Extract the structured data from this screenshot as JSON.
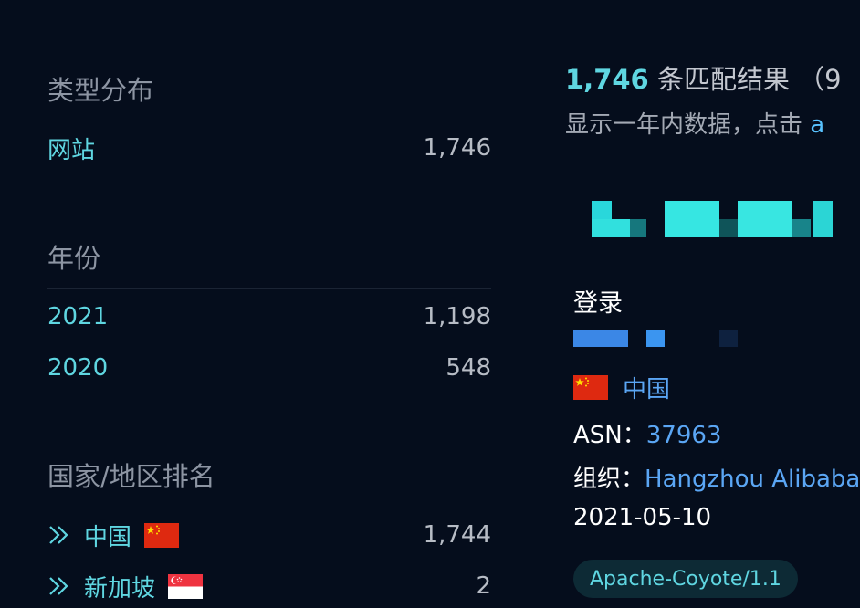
{
  "filters": {
    "type": {
      "title": "类型分布",
      "items": [
        {
          "label": "网站",
          "count": "1,746"
        }
      ]
    },
    "year": {
      "title": "年份",
      "items": [
        {
          "label": "2021",
          "count": "1,198"
        },
        {
          "label": "2020",
          "count": "548"
        }
      ]
    },
    "country": {
      "title": "国家/地区排名",
      "items": [
        {
          "label": "中国",
          "count": "1,744",
          "flag": "cn-flag-icon"
        },
        {
          "label": "新加坡",
          "count": "2",
          "flag": "sg-flag-icon"
        }
      ]
    }
  },
  "results": {
    "count": "1,746",
    "count_suffix": "条匹配结果  （9",
    "note": "显示一年内数据，点击 ",
    "note_link": "a"
  },
  "card": {
    "title": "登录",
    "country": "中国",
    "asn_label": "ASN：",
    "asn": "37963",
    "org_label": "组织：",
    "org": "Hangzhou Alibaba",
    "date": "2021-05-10",
    "tag": "Apache-Coyote/1.1"
  },
  "colors": {
    "background": "#050d1c",
    "accent_teal": "#5fd6e1",
    "link_blue": "#5ba6f4"
  }
}
